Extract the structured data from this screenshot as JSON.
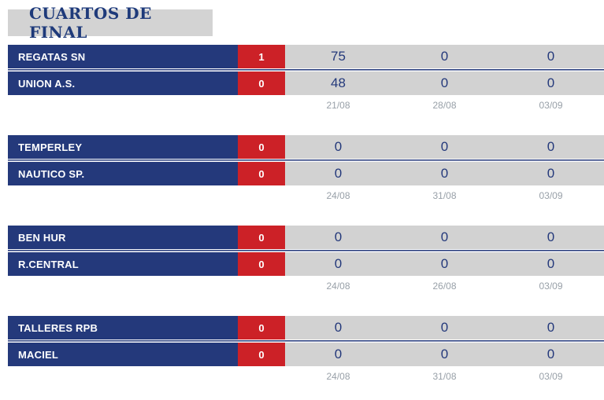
{
  "page": {
    "title": "CUARTOS DE FINAL"
  },
  "colors": {
    "navy": "#24397b",
    "red": "#cc2127",
    "panel_gray": "#d2d2d2",
    "header_gray": "#d3d3d3",
    "date_gray": "#98a0a8"
  },
  "matches": [
    {
      "home": {
        "name": "REGATAS SN",
        "wins": "1",
        "results": [
          "75",
          "0",
          "0"
        ]
      },
      "away": {
        "name": "UNION A.S.",
        "wins": "0",
        "results": [
          "48",
          "0",
          "0"
        ]
      },
      "dates": [
        "21/08",
        "28/08",
        "03/09"
      ]
    },
    {
      "home": {
        "name": "TEMPERLEY",
        "wins": "0",
        "results": [
          "0",
          "0",
          "0"
        ]
      },
      "away": {
        "name": "NAUTICO SP.",
        "wins": "0",
        "results": [
          "0",
          "0",
          "0"
        ]
      },
      "dates": [
        "24/08",
        "31/08",
        "03/09"
      ]
    },
    {
      "home": {
        "name": "BEN HUR",
        "wins": "0",
        "results": [
          "0",
          "0",
          "0"
        ]
      },
      "away": {
        "name": "R.CENTRAL",
        "wins": "0",
        "results": [
          "0",
          "0",
          "0"
        ]
      },
      "dates": [
        "24/08",
        "26/08",
        "03/09"
      ]
    },
    {
      "home": {
        "name": "TALLERES RPB",
        "wins": "0",
        "results": [
          "0",
          "0",
          "0"
        ]
      },
      "away": {
        "name": "MACIEL",
        "wins": "0",
        "results": [
          "0",
          "0",
          "0"
        ]
      },
      "dates": [
        "24/08",
        "31/08",
        "03/09"
      ]
    }
  ]
}
